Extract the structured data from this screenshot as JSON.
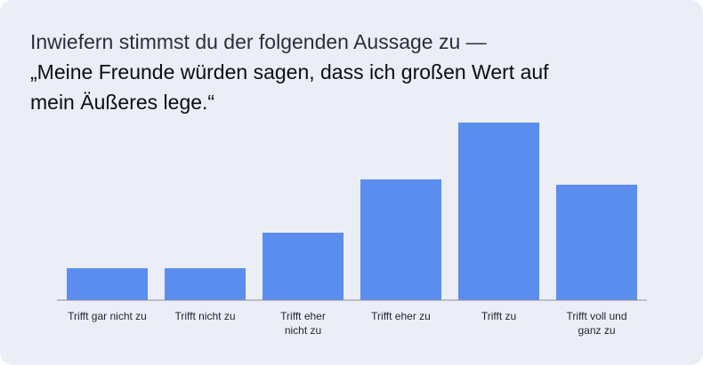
{
  "question": {
    "intro": "Inwiefern stimmst du der folgenden Aussage zu —",
    "statement": "„Meine Freunde würden sagen, dass ich großen Wert auf mein Äußeres lege.“"
  },
  "chart_data": {
    "type": "bar",
    "title": "",
    "xlabel": "",
    "ylabel": "",
    "categories": [
      "Trifft gar nicht zu",
      "Trifft nicht zu",
      "Trifft eher nicht zu",
      "Trifft eher zu",
      "Trifft zu",
      "Trifft voll und ganz zu"
    ],
    "tick_label_lines": [
      [
        "Trifft gar nicht zu"
      ],
      [
        "Trifft nicht zu"
      ],
      [
        "Trifft eher",
        "nicht zu"
      ],
      [
        "Trifft eher zu"
      ],
      [
        "Trifft zu"
      ],
      [
        "Trifft voll und",
        "ganz zu"
      ]
    ],
    "values": [
      18,
      18,
      38,
      68,
      100,
      65
    ],
    "ylim": [
      0,
      100
    ],
    "grid": false,
    "legend": "none",
    "bar_color": "#5b8def",
    "axis_color": "#8a8f9c"
  }
}
